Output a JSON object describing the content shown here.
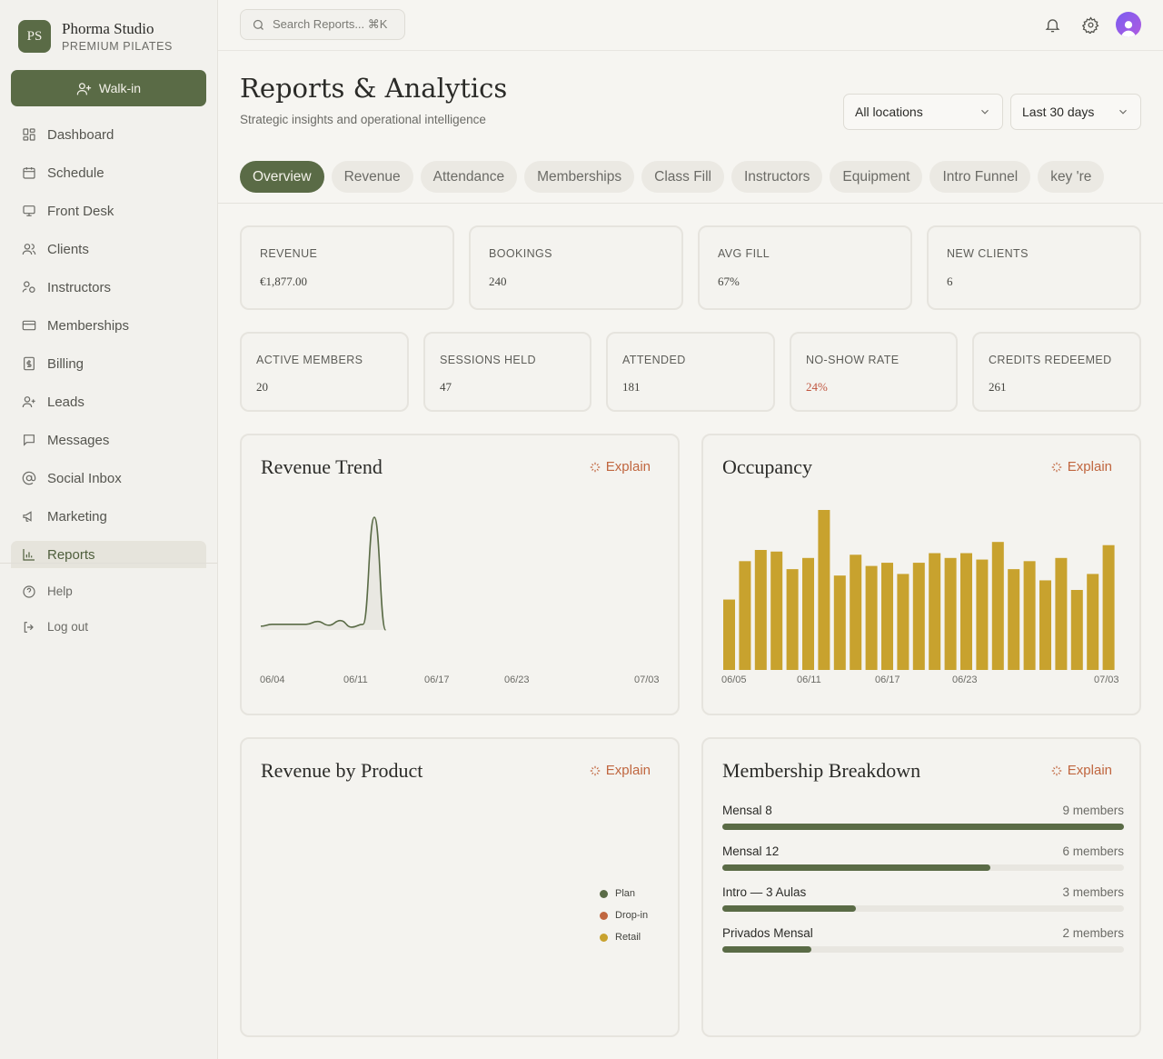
{
  "brand": {
    "initials": "PS",
    "name": "Phorma Studio",
    "subtitle": "PREMIUM PILATES"
  },
  "walkin_label": "Walk-in",
  "nav": [
    {
      "label": "Dashboard",
      "icon": "grid-icon"
    },
    {
      "label": "Schedule",
      "icon": "calendar-icon"
    },
    {
      "label": "Front Desk",
      "icon": "monitor-icon"
    },
    {
      "label": "Clients",
      "icon": "users-icon"
    },
    {
      "label": "Instructors",
      "icon": "instructor-icon"
    },
    {
      "label": "Memberships",
      "icon": "card-icon"
    },
    {
      "label": "Billing",
      "icon": "receipt-icon"
    },
    {
      "label": "Leads",
      "icon": "user-plus-icon"
    },
    {
      "label": "Messages",
      "icon": "message-icon"
    },
    {
      "label": "Social Inbox",
      "icon": "at-icon"
    },
    {
      "label": "Marketing",
      "icon": "megaphone-icon"
    },
    {
      "label": "Reports",
      "icon": "chart-icon",
      "active": true
    }
  ],
  "nav_footer": [
    {
      "label": "Help",
      "icon": "help-icon"
    },
    {
      "label": "Log out",
      "icon": "logout-icon"
    }
  ],
  "search": {
    "placeholder": "Search Reports... ⌘K"
  },
  "header": {
    "title": "Reports & Analytics",
    "subtitle": "Strategic insights and operational intelligence"
  },
  "filters": {
    "location": "All locations",
    "range": "Last 30 days"
  },
  "tabs": [
    "Overview",
    "Revenue",
    "Attendance",
    "Memberships",
    "Class Fill",
    "Instructors",
    "Equipment",
    "Intro Funnel",
    "key 're"
  ],
  "active_tab": "Overview",
  "stats_top": [
    {
      "label": "REVENUE",
      "value": "€1,877.00"
    },
    {
      "label": "BOOKINGS",
      "value": "240"
    },
    {
      "label": "AVG FILL",
      "value": "67%"
    },
    {
      "label": "NEW CLIENTS",
      "value": "6"
    }
  ],
  "stats_bottom": [
    {
      "label": "ACTIVE MEMBERS",
      "value": "20"
    },
    {
      "label": "SESSIONS HELD",
      "value": "47"
    },
    {
      "label": "ATTENDED",
      "value": "181"
    },
    {
      "label": "NO-SHOW RATE",
      "value": "24%"
    },
    {
      "label": "CREDITS REDEEMED",
      "value": "261"
    }
  ],
  "explain_label": "Explain",
  "panels": {
    "revenue_trend": "Revenue Trend",
    "occupancy": "Occupancy",
    "revenue_by_product": "Revenue by Product",
    "membership_breakdown": "Membership Breakdown"
  },
  "colors": {
    "primary": "#5a6b46",
    "accent": "#c0663f",
    "bar": "#c8a22e",
    "danger": "#c0553f"
  },
  "chart_data": [
    {
      "type": "line",
      "title": "Revenue Trend",
      "x_ticks": [
        "06/04",
        "06/11",
        "06/17",
        "06/23",
        "07/03"
      ],
      "x": [
        "06/04",
        "06/05",
        "06/06",
        "06/07",
        "06/08",
        "06/09",
        "06/10",
        "06/11",
        "06/12",
        "06/13",
        "06/14",
        "06/15"
      ],
      "values": [
        20,
        30,
        30,
        30,
        30,
        45,
        25,
        50,
        15,
        30,
        600,
        0
      ]
    },
    {
      "type": "bar",
      "title": "Occupancy",
      "x_ticks": [
        "06/05",
        "06/11",
        "06/17",
        "06/23",
        "07/03"
      ],
      "values": [
        44,
        68,
        75,
        74,
        63,
        70,
        100,
        59,
        72,
        65,
        67,
        60,
        67,
        73,
        70,
        73,
        69,
        80,
        63,
        68,
        56,
        70,
        50,
        60,
        78
      ]
    },
    {
      "type": "pie",
      "title": "Revenue by Product",
      "legend": [
        {
          "name": "Plan",
          "color": "#5a6b46"
        },
        {
          "name": "Drop-in",
          "color": "#c0663f"
        },
        {
          "name": "Retail",
          "color": "#c8a22e"
        }
      ]
    },
    {
      "type": "bar",
      "title": "Membership Breakdown",
      "categories": [
        "Mensal 8",
        "Mensal 12",
        "Intro — 3 Aulas",
        "Privados Mensal"
      ],
      "values": [
        9,
        6,
        3,
        2
      ],
      "labels": [
        "9 members",
        "6 members",
        "3 members",
        "2 members"
      ],
      "max": 9
    }
  ]
}
